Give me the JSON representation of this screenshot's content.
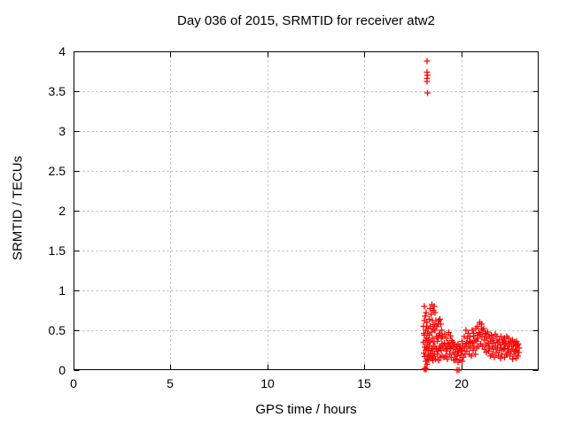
{
  "chart": {
    "title": "Day 036 of 2015, SRMTID for receiver atw2",
    "xlabel": "GPS time / hours",
    "ylabel": "SRMTID / TECUs"
  },
  "colors": {
    "marker": "#ff0000",
    "grid": "#b4b4b4",
    "axis": "#000000",
    "background": "#ffffff"
  },
  "chart_data": {
    "type": "scatter",
    "marker": "plus",
    "title": "Day 036 of 2015, SRMTID for receiver atw2",
    "xlabel": "GPS time / hours",
    "ylabel": "SRMTID / TECUs",
    "xlim": [
      0,
      24
    ],
    "ylim": [
      0,
      4
    ],
    "xticks": [
      0,
      5,
      10,
      15,
      20
    ],
    "xticklabels": [
      "0",
      "5",
      "10",
      "15",
      "20"
    ],
    "yticks": [
      0,
      0.5,
      1,
      1.5,
      2,
      2.5,
      3,
      3.5,
      4
    ],
    "yticklabels": [
      "0",
      "0.5",
      "1",
      "1.5",
      "2",
      "2.5",
      "3",
      "3.5",
      "4"
    ],
    "grid": true,
    "legend": false,
    "points": [
      [
        18.25,
        3.88
      ],
      [
        18.24,
        3.74
      ],
      [
        18.26,
        3.7
      ],
      [
        18.25,
        3.66
      ],
      [
        18.25,
        3.62
      ],
      [
        18.27,
        3.48
      ],
      [
        18.1,
        0.01
      ],
      [
        18.14,
        0.02
      ],
      [
        18.19,
        0.01
      ],
      [
        19.79,
        0.0
      ],
      [
        19.88,
        0.0
      ],
      [
        18.05,
        0.55
      ],
      [
        18.06,
        0.35
      ],
      [
        18.07,
        0.21
      ],
      [
        18.08,
        0.46
      ],
      [
        18.1,
        0.8
      ],
      [
        18.11,
        0.62
      ],
      [
        18.11,
        0.44
      ],
      [
        18.12,
        0.29
      ],
      [
        18.13,
        0.17
      ],
      [
        18.15,
        0.68
      ],
      [
        18.16,
        0.5
      ],
      [
        18.16,
        0.37
      ],
      [
        18.17,
        0.25
      ],
      [
        18.18,
        0.11
      ],
      [
        18.2,
        0.72
      ],
      [
        18.21,
        0.55
      ],
      [
        18.21,
        0.4
      ],
      [
        18.22,
        0.27
      ],
      [
        18.23,
        0.14
      ],
      [
        18.23,
        0.07
      ],
      [
        18.25,
        0.6
      ],
      [
        18.26,
        0.46
      ],
      [
        18.27,
        0.32
      ],
      [
        18.28,
        0.19
      ],
      [
        18.3,
        0.52
      ],
      [
        18.31,
        0.38
      ],
      [
        18.31,
        0.25
      ],
      [
        18.32,
        0.13
      ],
      [
        18.35,
        0.64
      ],
      [
        18.36,
        0.44
      ],
      [
        18.36,
        0.3
      ],
      [
        18.37,
        0.18
      ],
      [
        18.4,
        0.77
      ],
      [
        18.41,
        0.55
      ],
      [
        18.41,
        0.35
      ],
      [
        18.42,
        0.21
      ],
      [
        18.45,
        0.7
      ],
      [
        18.46,
        0.48
      ],
      [
        18.46,
        0.27
      ],
      [
        18.47,
        0.15
      ],
      [
        18.5,
        0.82
      ],
      [
        18.51,
        0.62
      ],
      [
        18.51,
        0.4
      ],
      [
        18.52,
        0.24
      ],
      [
        18.53,
        0.12
      ],
      [
        18.55,
        0.75
      ],
      [
        18.56,
        0.52
      ],
      [
        18.56,
        0.3
      ],
      [
        18.57,
        0.17
      ],
      [
        18.6,
        0.8
      ],
      [
        18.61,
        0.57
      ],
      [
        18.61,
        0.36
      ],
      [
        18.62,
        0.2
      ],
      [
        18.65,
        0.72
      ],
      [
        18.66,
        0.5
      ],
      [
        18.66,
        0.3
      ],
      [
        18.67,
        0.14
      ],
      [
        18.7,
        0.62
      ],
      [
        18.71,
        0.42
      ],
      [
        18.72,
        0.26
      ],
      [
        18.75,
        0.55
      ],
      [
        18.76,
        0.36
      ],
      [
        18.77,
        0.2
      ],
      [
        18.8,
        0.58
      ],
      [
        18.81,
        0.4
      ],
      [
        18.82,
        0.24
      ],
      [
        18.83,
        0.12
      ],
      [
        18.85,
        0.62
      ],
      [
        18.86,
        0.44
      ],
      [
        18.87,
        0.28
      ],
      [
        18.9,
        0.64
      ],
      [
        18.91,
        0.46
      ],
      [
        18.92,
        0.3
      ],
      [
        18.93,
        0.16
      ],
      [
        18.95,
        0.58
      ],
      [
        18.96,
        0.4
      ],
      [
        18.97,
        0.25
      ],
      [
        19.0,
        0.5
      ],
      [
        19.01,
        0.33
      ],
      [
        19.02,
        0.18
      ],
      [
        19.05,
        0.42
      ],
      [
        19.07,
        0.28
      ],
      [
        19.1,
        0.16
      ],
      [
        19.12,
        0.34
      ],
      [
        19.16,
        0.45
      ],
      [
        19.19,
        0.3
      ],
      [
        19.21,
        0.18
      ],
      [
        19.24,
        0.24
      ],
      [
        19.25,
        0.4
      ],
      [
        19.27,
        0.26
      ],
      [
        19.3,
        0.14
      ],
      [
        19.32,
        0.34
      ],
      [
        19.36,
        0.47
      ],
      [
        19.39,
        0.32
      ],
      [
        19.41,
        0.2
      ],
      [
        19.44,
        0.27
      ],
      [
        19.45,
        0.43
      ],
      [
        19.47,
        0.29
      ],
      [
        19.5,
        0.16
      ],
      [
        19.52,
        0.37
      ],
      [
        19.56,
        0.35
      ],
      [
        19.59,
        0.22
      ],
      [
        19.61,
        0.3
      ],
      [
        19.64,
        0.12
      ],
      [
        19.65,
        0.32
      ],
      [
        19.67,
        0.2
      ],
      [
        19.7,
        0.26
      ],
      [
        19.72,
        0.14
      ],
      [
        19.76,
        0.3
      ],
      [
        19.79,
        0.18
      ],
      [
        19.81,
        0.24
      ],
      [
        19.84,
        0.1
      ],
      [
        19.85,
        0.33
      ],
      [
        19.87,
        0.22
      ],
      [
        19.9,
        0.28
      ],
      [
        19.92,
        0.13
      ],
      [
        19.96,
        0.3
      ],
      [
        19.99,
        0.19
      ],
      [
        20.01,
        0.25
      ],
      [
        20.04,
        0.11
      ],
      [
        20.05,
        0.36
      ],
      [
        20.07,
        0.24
      ],
      [
        20.1,
        0.3
      ],
      [
        20.12,
        0.16
      ],
      [
        20.16,
        0.42
      ],
      [
        20.19,
        0.28
      ],
      [
        20.21,
        0.2
      ],
      [
        20.24,
        0.33
      ],
      [
        20.25,
        0.5
      ],
      [
        20.27,
        0.34
      ],
      [
        20.3,
        0.24
      ],
      [
        20.32,
        0.4
      ],
      [
        20.36,
        0.46
      ],
      [
        20.39,
        0.3
      ],
      [
        20.41,
        0.2
      ],
      [
        20.44,
        0.36
      ],
      [
        20.45,
        0.42
      ],
      [
        20.47,
        0.28
      ],
      [
        20.5,
        0.35
      ],
      [
        20.52,
        0.18
      ],
      [
        20.56,
        0.5
      ],
      [
        20.59,
        0.34
      ],
      [
        20.61,
        0.25
      ],
      [
        20.64,
        0.43
      ],
      [
        20.65,
        0.46
      ],
      [
        20.67,
        0.3
      ],
      [
        20.7,
        0.38
      ],
      [
        20.72,
        0.2
      ],
      [
        20.76,
        0.52
      ],
      [
        20.79,
        0.36
      ],
      [
        20.81,
        0.28
      ],
      [
        20.84,
        0.44
      ],
      [
        20.85,
        0.55
      ],
      [
        20.87,
        0.4
      ],
      [
        20.9,
        0.3
      ],
      [
        20.92,
        0.47
      ],
      [
        20.96,
        0.6
      ],
      [
        20.99,
        0.45
      ],
      [
        21.01,
        0.33
      ],
      [
        21.04,
        0.52
      ],
      [
        21.05,
        0.58
      ],
      [
        21.07,
        0.42
      ],
      [
        21.1,
        0.3
      ],
      [
        21.12,
        0.5
      ],
      [
        21.16,
        0.52
      ],
      [
        21.19,
        0.38
      ],
      [
        21.21,
        0.26
      ],
      [
        21.24,
        0.45
      ],
      [
        21.25,
        0.46
      ],
      [
        21.27,
        0.32
      ],
      [
        21.3,
        0.22
      ],
      [
        21.32,
        0.4
      ],
      [
        21.36,
        0.48
      ],
      [
        21.39,
        0.34
      ],
      [
        21.41,
        0.24
      ],
      [
        21.44,
        0.3
      ],
      [
        21.45,
        0.42
      ],
      [
        21.47,
        0.28
      ],
      [
        21.5,
        0.18
      ],
      [
        21.52,
        0.36
      ],
      [
        21.56,
        0.44
      ],
      [
        21.59,
        0.3
      ],
      [
        21.61,
        0.2
      ],
      [
        21.64,
        0.38
      ],
      [
        21.65,
        0.4
      ],
      [
        21.67,
        0.26
      ],
      [
        21.7,
        0.34
      ],
      [
        21.72,
        0.16
      ],
      [
        21.76,
        0.45
      ],
      [
        21.79,
        0.3
      ],
      [
        21.81,
        0.22
      ],
      [
        21.84,
        0.38
      ],
      [
        21.85,
        0.42
      ],
      [
        21.87,
        0.28
      ],
      [
        21.9,
        0.35
      ],
      [
        21.92,
        0.18
      ],
      [
        21.96,
        0.38
      ],
      [
        21.99,
        0.25
      ],
      [
        22.01,
        0.32
      ],
      [
        22.04,
        0.15
      ],
      [
        22.05,
        0.42
      ],
      [
        22.07,
        0.28
      ],
      [
        22.1,
        0.2
      ],
      [
        22.12,
        0.35
      ],
      [
        22.16,
        0.38
      ],
      [
        22.19,
        0.26
      ],
      [
        22.21,
        0.32
      ],
      [
        22.24,
        0.16
      ],
      [
        22.25,
        0.4
      ],
      [
        22.27,
        0.27
      ],
      [
        22.3,
        0.34
      ],
      [
        22.32,
        0.2
      ],
      [
        22.36,
        0.42
      ],
      [
        22.39,
        0.3
      ],
      [
        22.41,
        0.22
      ],
      [
        22.44,
        0.36
      ],
      [
        22.45,
        0.4
      ],
      [
        22.47,
        0.26
      ],
      [
        22.5,
        0.32
      ],
      [
        22.52,
        0.18
      ],
      [
        22.56,
        0.36
      ],
      [
        22.59,
        0.24
      ],
      [
        22.61,
        0.3
      ],
      [
        22.64,
        0.14
      ],
      [
        22.65,
        0.38
      ],
      [
        22.67,
        0.26
      ],
      [
        22.7,
        0.32
      ],
      [
        22.72,
        0.2
      ],
      [
        22.76,
        0.35
      ],
      [
        22.79,
        0.24
      ],
      [
        22.81,
        0.3
      ],
      [
        22.84,
        0.15
      ],
      [
        22.85,
        0.36
      ],
      [
        22.87,
        0.25
      ],
      [
        22.9,
        0.31
      ],
      [
        22.92,
        0.18
      ],
      [
        22.95,
        0.33
      ],
      [
        22.97,
        0.22
      ],
      [
        22.99,
        0.28
      ]
    ]
  }
}
